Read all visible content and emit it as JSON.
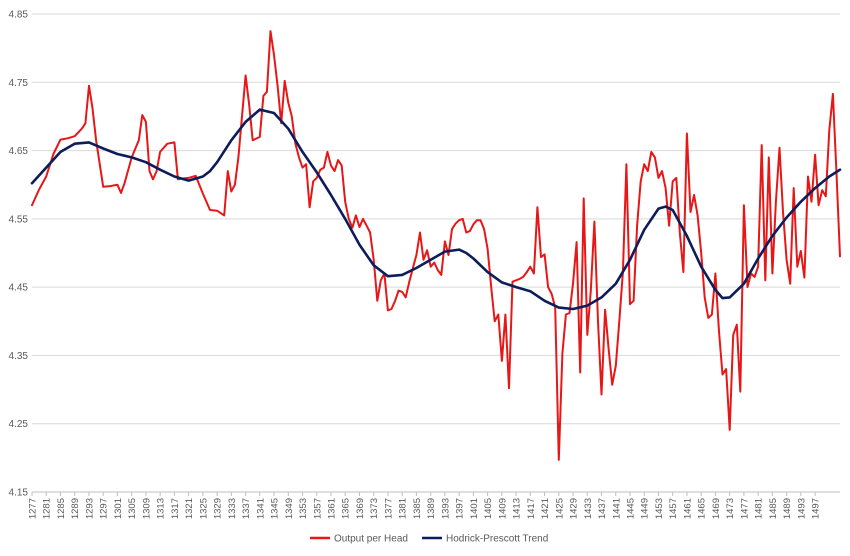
{
  "chart_data": {
    "type": "line",
    "title": "",
    "xlabel": "",
    "ylabel": "",
    "ylim": [
      4.15,
      4.85
    ],
    "yticks": [
      4.15,
      4.25,
      4.35,
      4.45,
      4.55,
      4.65,
      4.75,
      4.85
    ],
    "ytick_labels": [
      "4.15",
      "4.25",
      "4.35",
      "4.45",
      "4.55",
      "4.65",
      "4.75",
      "4.85"
    ],
    "xlim": [
      1277,
      1500
    ],
    "xtick_step": 4,
    "grid": "horizontal",
    "legend_position": "bottom-center",
    "series": [
      {
        "name": "Output per Head",
        "color": "#e81717",
        "points": [
          [
            1277,
            4.57
          ],
          [
            1279,
            4.593
          ],
          [
            1281,
            4.612
          ],
          [
            1283,
            4.645
          ],
          [
            1285,
            4.666
          ],
          [
            1287,
            4.668
          ],
          [
            1289,
            4.671
          ],
          [
            1291,
            4.682
          ],
          [
            1292,
            4.69
          ],
          [
            1293,
            4.745
          ],
          [
            1294,
            4.712
          ],
          [
            1295,
            4.665
          ],
          [
            1297,
            4.597
          ],
          [
            1299,
            4.598
          ],
          [
            1301,
            4.6
          ],
          [
            1302,
            4.588
          ],
          [
            1303,
            4.602
          ],
          [
            1305,
            4.64
          ],
          [
            1307,
            4.665
          ],
          [
            1308,
            4.702
          ],
          [
            1309,
            4.692
          ],
          [
            1310,
            4.62
          ],
          [
            1311,
            4.608
          ],
          [
            1312,
            4.62
          ],
          [
            1313,
            4.648
          ],
          [
            1315,
            4.66
          ],
          [
            1317,
            4.662
          ],
          [
            1318,
            4.608
          ],
          [
            1319,
            4.609
          ],
          [
            1321,
            4.61
          ],
          [
            1323,
            4.613
          ],
          [
            1325,
            4.587
          ],
          [
            1327,
            4.563
          ],
          [
            1329,
            4.562
          ],
          [
            1331,
            4.555
          ],
          [
            1332,
            4.62
          ],
          [
            1333,
            4.59
          ],
          [
            1334,
            4.6
          ],
          [
            1335,
            4.64
          ],
          [
            1336,
            4.7
          ],
          [
            1337,
            4.76
          ],
          [
            1338,
            4.718
          ],
          [
            1339,
            4.665
          ],
          [
            1341,
            4.67
          ],
          [
            1342,
            4.73
          ],
          [
            1343,
            4.736
          ],
          [
            1344,
            4.825
          ],
          [
            1345,
            4.79
          ],
          [
            1346,
            4.745
          ],
          [
            1347,
            4.69
          ],
          [
            1348,
            4.752
          ],
          [
            1349,
            4.72
          ],
          [
            1350,
            4.7
          ],
          [
            1351,
            4.66
          ],
          [
            1352,
            4.64
          ],
          [
            1353,
            4.625
          ],
          [
            1354,
            4.63
          ],
          [
            1355,
            4.567
          ],
          [
            1356,
            4.605
          ],
          [
            1357,
            4.61
          ],
          [
            1358,
            4.622
          ],
          [
            1359,
            4.625
          ],
          [
            1360,
            4.648
          ],
          [
            1361,
            4.628
          ],
          [
            1362,
            4.62
          ],
          [
            1363,
            4.636
          ],
          [
            1364,
            4.628
          ],
          [
            1365,
            4.575
          ],
          [
            1366,
            4.55
          ],
          [
            1367,
            4.537
          ],
          [
            1368,
            4.555
          ],
          [
            1369,
            4.538
          ],
          [
            1370,
            4.55
          ],
          [
            1371,
            4.54
          ],
          [
            1372,
            4.53
          ],
          [
            1373,
            4.49
          ],
          [
            1374,
            4.43
          ],
          [
            1375,
            4.46
          ],
          [
            1376,
            4.47
          ],
          [
            1377,
            4.416
          ],
          [
            1378,
            4.418
          ],
          [
            1379,
            4.43
          ],
          [
            1380,
            4.445
          ],
          [
            1381,
            4.443
          ],
          [
            1382,
            4.435
          ],
          [
            1383,
            4.458
          ],
          [
            1384,
            4.478
          ],
          [
            1385,
            4.497
          ],
          [
            1386,
            4.53
          ],
          [
            1387,
            4.49
          ],
          [
            1388,
            4.504
          ],
          [
            1389,
            4.48
          ],
          [
            1390,
            4.486
          ],
          [
            1391,
            4.475
          ],
          [
            1392,
            4.468
          ],
          [
            1393,
            4.517
          ],
          [
            1394,
            4.497
          ],
          [
            1395,
            4.535
          ],
          [
            1396,
            4.543
          ],
          [
            1397,
            4.548
          ],
          [
            1398,
            4.55
          ],
          [
            1399,
            4.53
          ],
          [
            1400,
            4.532
          ],
          [
            1401,
            4.542
          ],
          [
            1402,
            4.548
          ],
          [
            1403,
            4.548
          ],
          [
            1404,
            4.535
          ],
          [
            1405,
            4.506
          ],
          [
            1406,
            4.45
          ],
          [
            1407,
            4.4
          ],
          [
            1408,
            4.41
          ],
          [
            1409,
            4.342
          ],
          [
            1410,
            4.41
          ],
          [
            1411,
            4.302
          ],
          [
            1412,
            4.458
          ],
          [
            1413,
            4.46
          ],
          [
            1414,
            4.462
          ],
          [
            1415,
            4.465
          ],
          [
            1416,
            4.472
          ],
          [
            1417,
            4.48
          ],
          [
            1418,
            4.47
          ],
          [
            1419,
            4.567
          ],
          [
            1420,
            4.494
          ],
          [
            1421,
            4.498
          ],
          [
            1422,
            4.45
          ],
          [
            1423,
            4.44
          ],
          [
            1424,
            4.42
          ],
          [
            1425,
            4.197
          ],
          [
            1426,
            4.353
          ],
          [
            1427,
            4.41
          ],
          [
            1428,
            4.412
          ],
          [
            1429,
            4.455
          ],
          [
            1430,
            4.516
          ],
          [
            1431,
            4.325
          ],
          [
            1432,
            4.58
          ],
          [
            1433,
            4.38
          ],
          [
            1434,
            4.445
          ],
          [
            1435,
            4.546
          ],
          [
            1436,
            4.4
          ],
          [
            1437,
            4.293
          ],
          [
            1438,
            4.417
          ],
          [
            1439,
            4.36
          ],
          [
            1440,
            4.307
          ],
          [
            1441,
            4.335
          ],
          [
            1442,
            4.4
          ],
          [
            1443,
            4.472
          ],
          [
            1444,
            4.63
          ],
          [
            1445,
            4.425
          ],
          [
            1446,
            4.43
          ],
          [
            1447,
            4.54
          ],
          [
            1448,
            4.605
          ],
          [
            1449,
            4.63
          ],
          [
            1450,
            4.62
          ],
          [
            1451,
            4.648
          ],
          [
            1452,
            4.64
          ],
          [
            1453,
            4.61
          ],
          [
            1454,
            4.62
          ],
          [
            1455,
            4.595
          ],
          [
            1456,
            4.54
          ],
          [
            1457,
            4.605
          ],
          [
            1458,
            4.61
          ],
          [
            1459,
            4.53
          ],
          [
            1460,
            4.472
          ],
          [
            1461,
            4.675
          ],
          [
            1462,
            4.56
          ],
          [
            1463,
            4.585
          ],
          [
            1464,
            4.555
          ],
          [
            1465,
            4.5
          ],
          [
            1466,
            4.435
          ],
          [
            1467,
            4.405
          ],
          [
            1468,
            4.41
          ],
          [
            1469,
            4.47
          ],
          [
            1470,
            4.385
          ],
          [
            1471,
            4.322
          ],
          [
            1472,
            4.33
          ],
          [
            1473,
            4.241
          ],
          [
            1474,
            4.38
          ],
          [
            1475,
            4.395
          ],
          [
            1476,
            4.297
          ],
          [
            1477,
            4.57
          ],
          [
            1478,
            4.45
          ],
          [
            1479,
            4.47
          ],
          [
            1480,
            4.465
          ],
          [
            1481,
            4.48
          ],
          [
            1482,
            4.658
          ],
          [
            1483,
            4.46
          ],
          [
            1484,
            4.64
          ],
          [
            1485,
            4.47
          ],
          [
            1486,
            4.575
          ],
          [
            1487,
            4.654
          ],
          [
            1488,
            4.56
          ],
          [
            1489,
            4.49
          ],
          [
            1490,
            4.455
          ],
          [
            1491,
            4.595
          ],
          [
            1492,
            4.48
          ],
          [
            1493,
            4.503
          ],
          [
            1494,
            4.464
          ],
          [
            1495,
            4.612
          ],
          [
            1496,
            4.575
          ],
          [
            1497,
            4.644
          ],
          [
            1498,
            4.57
          ],
          [
            1499,
            4.592
          ],
          [
            1500,
            4.583
          ],
          [
            1501,
            4.68
          ],
          [
            1502,
            4.733
          ],
          [
            1503,
            4.62
          ],
          [
            1504,
            4.495
          ]
        ]
      },
      {
        "name": "Hodrick-Prescott Trend",
        "color": "#0d1d5a",
        "points": [
          [
            1277,
            4.602
          ],
          [
            1281,
            4.625
          ],
          [
            1285,
            4.648
          ],
          [
            1289,
            4.66
          ],
          [
            1293,
            4.662
          ],
          [
            1297,
            4.653
          ],
          [
            1301,
            4.645
          ],
          [
            1305,
            4.64
          ],
          [
            1309,
            4.633
          ],
          [
            1313,
            4.622
          ],
          [
            1317,
            4.612
          ],
          [
            1321,
            4.606
          ],
          [
            1325,
            4.612
          ],
          [
            1327,
            4.62
          ],
          [
            1329,
            4.633
          ],
          [
            1333,
            4.665
          ],
          [
            1337,
            4.692
          ],
          [
            1341,
            4.71
          ],
          [
            1345,
            4.705
          ],
          [
            1349,
            4.682
          ],
          [
            1353,
            4.648
          ],
          [
            1357,
            4.618
          ],
          [
            1361,
            4.585
          ],
          [
            1365,
            4.55
          ],
          [
            1369,
            4.512
          ],
          [
            1373,
            4.482
          ],
          [
            1377,
            4.466
          ],
          [
            1381,
            4.468
          ],
          [
            1385,
            4.478
          ],
          [
            1389,
            4.49
          ],
          [
            1393,
            4.502
          ],
          [
            1397,
            4.505
          ],
          [
            1399,
            4.5
          ],
          [
            1401,
            4.492
          ],
          [
            1405,
            4.472
          ],
          [
            1409,
            4.457
          ],
          [
            1413,
            4.45
          ],
          [
            1417,
            4.444
          ],
          [
            1421,
            4.43
          ],
          [
            1425,
            4.42
          ],
          [
            1429,
            4.418
          ],
          [
            1433,
            4.423
          ],
          [
            1437,
            4.435
          ],
          [
            1441,
            4.455
          ],
          [
            1445,
            4.49
          ],
          [
            1449,
            4.534
          ],
          [
            1453,
            4.565
          ],
          [
            1455,
            4.568
          ],
          [
            1457,
            4.563
          ],
          [
            1461,
            4.525
          ],
          [
            1465,
            4.48
          ],
          [
            1469,
            4.446
          ],
          [
            1471,
            4.434
          ],
          [
            1473,
            4.435
          ],
          [
            1477,
            4.455
          ],
          [
            1481,
            4.492
          ],
          [
            1485,
            4.525
          ],
          [
            1489,
            4.552
          ],
          [
            1493,
            4.575
          ],
          [
            1497,
            4.595
          ],
          [
            1501,
            4.612
          ],
          [
            1504,
            4.622
          ]
        ]
      }
    ]
  }
}
